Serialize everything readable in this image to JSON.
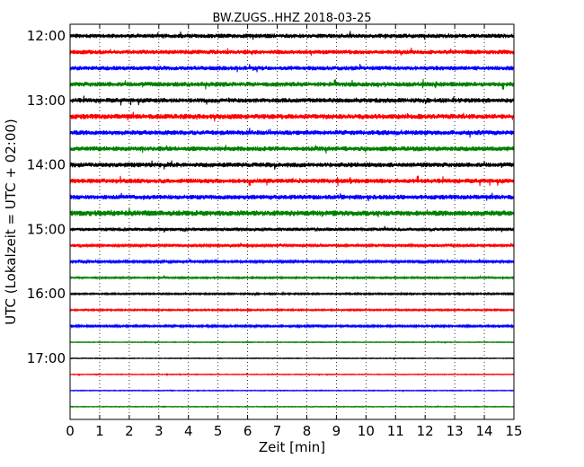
{
  "chart_data": {
    "type": "line",
    "title": "BW.ZUGS..HHZ 2018-03-25",
    "xlabel": "Zeit  [min]",
    "ylabel": "UTC (Lokalzeit = UTC + 02:00)",
    "xlim": [
      0,
      15
    ],
    "x_ticks": [
      0,
      1,
      2,
      3,
      4,
      5,
      6,
      7,
      8,
      9,
      10,
      11,
      12,
      13,
      14,
      15
    ],
    "x_tick_labels": [
      "0",
      "1",
      "2",
      "3",
      "4",
      "5",
      "6",
      "7",
      "8",
      "9",
      "10",
      "11",
      "12",
      "13",
      "14",
      "15"
    ],
    "grid_x": true,
    "y_tick_labels": [
      "12:00",
      "13:00",
      "14:00",
      "15:00",
      "16:00",
      "17:00"
    ],
    "y_tick_times": [
      "12:00",
      "13:00",
      "14:00",
      "15:00",
      "16:00",
      "17:00"
    ],
    "trace_interval_minutes": 15,
    "colors": [
      "#000000",
      "#ff0000",
      "#0000ff",
      "#008000"
    ],
    "traces": [
      {
        "start": "12:00",
        "color": "#000000",
        "amplitude": 0.55
      },
      {
        "start": "12:15",
        "color": "#ff0000",
        "amplitude": 0.55
      },
      {
        "start": "12:30",
        "color": "#0000ff",
        "amplitude": 0.55
      },
      {
        "start": "12:45",
        "color": "#008000",
        "amplitude": 0.6
      },
      {
        "start": "13:00",
        "color": "#000000",
        "amplitude": 0.6
      },
      {
        "start": "13:15",
        "color": "#ff0000",
        "amplitude": 0.65
      },
      {
        "start": "13:30",
        "color": "#0000ff",
        "amplitude": 0.6
      },
      {
        "start": "13:45",
        "color": "#008000",
        "amplitude": 0.6
      },
      {
        "start": "14:00",
        "color": "#000000",
        "amplitude": 0.6
      },
      {
        "start": "14:15",
        "color": "#ff0000",
        "amplitude": 0.6
      },
      {
        "start": "14:30",
        "color": "#0000ff",
        "amplitude": 0.6
      },
      {
        "start": "14:45",
        "color": "#008000",
        "amplitude": 0.7
      },
      {
        "start": "15:00",
        "color": "#000000",
        "amplitude": 0.4
      },
      {
        "start": "15:15",
        "color": "#ff0000",
        "amplitude": 0.35
      },
      {
        "start": "15:30",
        "color": "#0000ff",
        "amplitude": 0.3
      },
      {
        "start": "15:45",
        "color": "#008000",
        "amplitude": 0.2
      },
      {
        "start": "16:00",
        "color": "#000000",
        "amplitude": 0.2
      },
      {
        "start": "16:15",
        "color": "#ff0000",
        "amplitude": 0.2
      },
      {
        "start": "16:30",
        "color": "#0000ff",
        "amplitude": 0.25
      },
      {
        "start": "16:45",
        "color": "#008000",
        "amplitude": 0.1
      },
      {
        "start": "17:00",
        "color": "#000000",
        "amplitude": 0.1
      },
      {
        "start": "17:15",
        "color": "#ff0000",
        "amplitude": 0.1
      },
      {
        "start": "17:30",
        "color": "#0000ff",
        "amplitude": 0.1
      },
      {
        "start": "17:45",
        "color": "#008000",
        "amplitude": 0.1
      }
    ]
  }
}
